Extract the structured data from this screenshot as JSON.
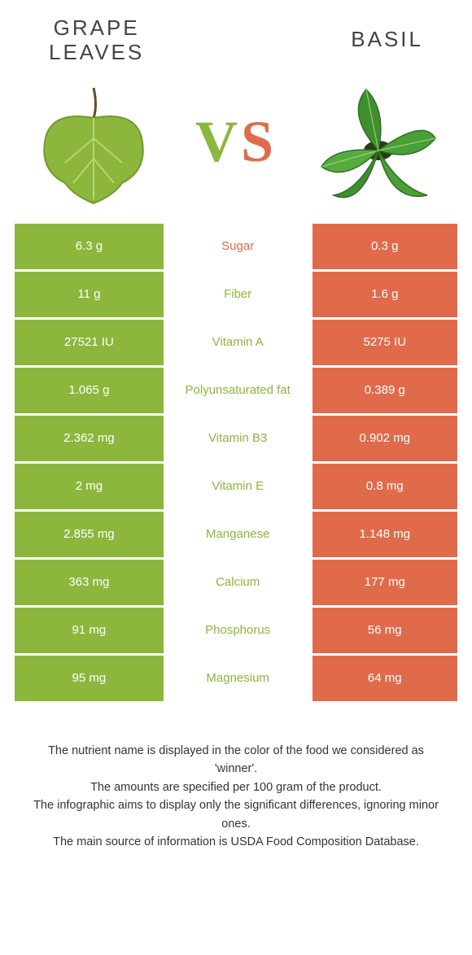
{
  "header": {
    "left_title_line1": "Grape",
    "left_title_line2": "leaves",
    "right_title": "Basil"
  },
  "vs": {
    "v_text": "V",
    "s_text": "S",
    "v_color": "#8cb63c",
    "s_color": "#e06b4b"
  },
  "colors": {
    "left_cell": "#8cb63c",
    "right_cell": "#e06b4b",
    "winner_left_text": "#8cb63c",
    "winner_right_text": "#e06b4b"
  },
  "rows": [
    {
      "left": "6.3 g",
      "label": "Sugar",
      "right": "0.3 g",
      "winner": "right"
    },
    {
      "left": "11 g",
      "label": "Fiber",
      "right": "1.6 g",
      "winner": "left"
    },
    {
      "left": "27521 IU",
      "label": "Vitamin A",
      "right": "5275 IU",
      "winner": "left"
    },
    {
      "left": "1.065 g",
      "label": "Polyunsaturated fat",
      "right": "0.389 g",
      "winner": "left"
    },
    {
      "left": "2.362 mg",
      "label": "Vitamin B3",
      "right": "0.902 mg",
      "winner": "left"
    },
    {
      "left": "2 mg",
      "label": "Vitamin E",
      "right": "0.8 mg",
      "winner": "left"
    },
    {
      "left": "2.855 mg",
      "label": "Manganese",
      "right": "1.148 mg",
      "winner": "left"
    },
    {
      "left": "363 mg",
      "label": "Calcium",
      "right": "177 mg",
      "winner": "left"
    },
    {
      "left": "91 mg",
      "label": "Phosphorus",
      "right": "56 mg",
      "winner": "left"
    },
    {
      "left": "95 mg",
      "label": "Magnesium",
      "right": "64 mg",
      "winner": "left"
    }
  ],
  "footer": {
    "line1": "The nutrient name is displayed in the color of the food we considered as 'winner'.",
    "line2": "The amounts are specified per 100 gram of the product.",
    "line3": "The infographic aims to display only the significant differences, ignoring minor ones.",
    "line4": "The main source of information is USDA Food Composition Database."
  }
}
